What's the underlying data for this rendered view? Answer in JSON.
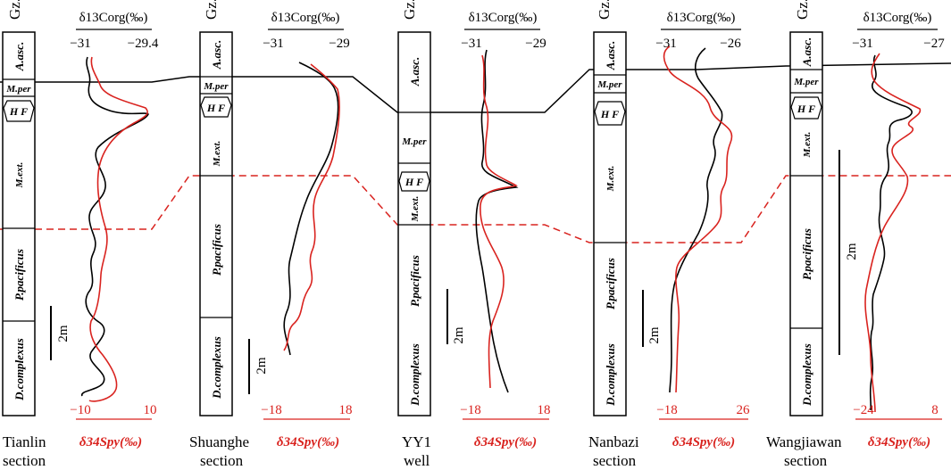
{
  "figure": {
    "column_header": "Gz.",
    "top_axis_label": "δ13Corg(‰)",
    "bottom_axis_label": "δ34Spy(‰)",
    "scale_label": "2m",
    "colors": {
      "carbon_curve": "#000000",
      "sulfur_curve": "#d9231f",
      "correlation_line": "#000000",
      "boundary_line": "#d9231f"
    }
  },
  "sections": [
    {
      "name_line1": "Tianlin",
      "name_line2": "section",
      "carbon_axis": {
        "min": "−31",
        "max": "−29.4"
      },
      "sulfur_axis": {
        "min": "−10",
        "max": "10"
      },
      "zones": [
        "A.asc.",
        "M.per",
        "H F",
        "M.ext.",
        "P.pacificus",
        "D.complexus"
      ]
    },
    {
      "name_line1": "Shuanghe",
      "name_line2": "section",
      "carbon_axis": {
        "min": "−31",
        "max": "−29"
      },
      "sulfur_axis": {
        "min": "−18",
        "max": "18"
      },
      "zones": [
        "A.asc.",
        "M.per",
        "H F",
        "M.ext.",
        "P.pacificus",
        "D.complexus"
      ]
    },
    {
      "name_line1": "YY1",
      "name_line2": "well",
      "carbon_axis": {
        "min": "−31",
        "max": "−29"
      },
      "sulfur_axis": {
        "min": "−18",
        "max": "18"
      },
      "zones": [
        "A.asc.",
        "M.per",
        "H F",
        "M.ext.",
        "P.pacificus",
        "D.complexus"
      ]
    },
    {
      "name_line1": "Nanbazi",
      "name_line2": "section",
      "carbon_axis": {
        "min": "−31",
        "max": "−26"
      },
      "sulfur_axis": {
        "min": "−18",
        "max": "26"
      },
      "zones": [
        "A.asc.",
        "M.per",
        "H F",
        "M.ext.",
        "P.pacificus",
        "D.complexus"
      ]
    },
    {
      "name_line1": "Wangjiawan",
      "name_line2": "section",
      "carbon_axis": {
        "min": "−31",
        "max": "−27"
      },
      "sulfur_axis": {
        "min": "−24",
        "max": "8"
      },
      "zones": [
        "A.asc.",
        "M.per",
        "H F",
        "M.ext.",
        "P.pacificus",
        "D.complexus"
      ]
    }
  ]
}
